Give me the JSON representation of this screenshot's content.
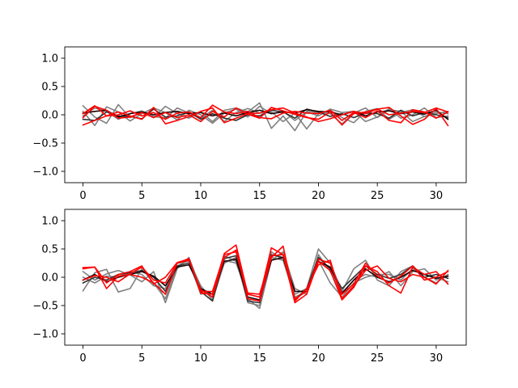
{
  "chart_data": [
    {
      "type": "line",
      "xlim": [
        -1.55,
        32.55
      ],
      "ylim": [
        -1.2,
        1.2
      ],
      "x_ticks": [
        0,
        5,
        10,
        15,
        20,
        25,
        30
      ],
      "x_tick_labels": [
        "0",
        "5",
        "10",
        "15",
        "20",
        "25",
        "30"
      ],
      "y_ticks": [
        -1.0,
        -0.5,
        0.0,
        0.5,
        1.0
      ],
      "y_tick_labels": [
        "−1.0",
        "−0.5",
        "0.0",
        "0.5",
        "1.0"
      ],
      "grid": false,
      "x": [
        0,
        1,
        2,
        3,
        4,
        5,
        6,
        7,
        8,
        9,
        10,
        11,
        12,
        13,
        14,
        15,
        16,
        17,
        18,
        19,
        20,
        21,
        22,
        23,
        24,
        25,
        26,
        27,
        28,
        29,
        30,
        31
      ],
      "series": [
        {
          "color": "#808080",
          "values": [
            0.16,
            -0.04,
            -0.15,
            0.18,
            -0.05,
            0.04,
            -0.05,
            0.15,
            0.02,
            -0.06,
            0.05,
            -0.12,
            0.08,
            0.12,
            0.05,
            0.21,
            -0.24,
            -0.02,
            -0.28,
            0.06,
            0.04,
            0.02,
            -0.16,
            0.03,
            0.12,
            -0.05,
            0.09,
            0.06,
            -0.12,
            -0.03,
            0.05,
            0.02
          ]
        },
        {
          "color": "#808080",
          "values": [
            -0.02,
            0.12,
            0.06,
            -0.08,
            0.02,
            0.07,
            -0.03,
            -0.06,
            0.12,
            0.03,
            -0.06,
            0.08,
            -0.12,
            0.04,
            0.11,
            0.03,
            0.05,
            -0.12,
            0.03,
            -0.25,
            0.02,
            0.08,
            -0.05,
            -0.14,
            0.06,
            0.11,
            -0.08,
            0.04,
            0.09,
            -0.03,
            0.02,
            0.06
          ]
        },
        {
          "color": "#808080",
          "values": [
            0.06,
            -0.19,
            0.14,
            0.05,
            -0.11,
            0.02,
            0.12,
            0.04,
            -0.09,
            0.08,
            0.0,
            -0.15,
            0.03,
            0.1,
            -0.04,
            0.15,
            0.02,
            0.06,
            -0.1,
            0.05,
            -0.02,
            0.1,
            0.04,
            0.06,
            -0.12,
            -0.04,
            0.11,
            -0.06,
            0.0,
            0.12,
            -0.05,
            -0.02
          ]
        },
        {
          "color": "#333333",
          "values": [
            -0.08,
            -0.1,
            0.05,
            -0.02,
            -0.03,
            -0.07,
            0.1,
            -0.04,
            -0.02,
            0.05,
            -0.08,
            0.02,
            -0.06,
            -0.1,
            0.0,
            -0.02,
            0.08,
            0.05,
            -0.06,
            0.1,
            0.05,
            -0.03,
            0.02,
            -0.05,
            0.03,
            0.02,
            -0.06,
            0.08,
            -0.02,
            0.04,
            0.0,
            -0.05
          ]
        },
        {
          "color": "#1a0000",
          "values": [
            0.03,
            0.06,
            0.08,
            -0.04,
            0.02,
            0.05,
            0.0,
            0.04,
            0.06,
            0.02,
            0.04,
            -0.02,
            0.03,
            -0.02,
            0.04,
            0.08,
            0.02,
            0.05,
            0.03,
            0.09,
            0.06,
            0.05,
            0.0,
            0.06,
            -0.02,
            0.05,
            0.07,
            0.02,
            0.05,
            0.01,
            0.08,
            -0.08
          ]
        },
        {
          "color": "#ff0000",
          "values": [
            -0.18,
            -0.1,
            -0.02,
            0.05,
            -0.02,
            -0.08,
            0.13,
            -0.16,
            -0.1,
            -0.03,
            0.06,
            0.12,
            -0.14,
            -0.06,
            0.02,
            0.03,
            0.09,
            0.12,
            0.03,
            -0.04,
            -0.12,
            -0.07,
            0.0,
            0.06,
            0.02,
            0.1,
            0.13,
            -0.02,
            -0.17,
            -0.08,
            0.11,
            -0.19
          ]
        },
        {
          "color": "#ff0000",
          "values": [
            -0.05,
            0.15,
            0.08,
            -0.06,
            -0.04,
            0.04,
            -0.05,
            0.04,
            -0.05,
            0.0,
            -0.12,
            0.06,
            -0.04,
            0.12,
            0.01,
            -0.06,
            0.13,
            0.07,
            0.01,
            -0.05,
            -0.08,
            0.05,
            -0.18,
            0.02,
            0.05,
            0.1,
            0.0,
            0.03,
            0.06,
            0.04,
            0.12,
            0.05
          ]
        },
        {
          "color": "#ff0000",
          "values": [
            0.02,
            0.16,
            -0.02,
            0.0,
            0.07,
            -0.02,
            0.04,
            -0.08,
            0.03,
            0.05,
            -0.05,
            0.17,
            0.05,
            0.02,
            0.06,
            -0.05,
            -0.07,
            0.03,
            0.06,
            0.03,
            0.02,
            0.08,
            -0.1,
            0.04,
            -0.05,
            0.07,
            -0.1,
            -0.14,
            0.09,
            0.05,
            -0.06,
            0.05
          ]
        }
      ]
    },
    {
      "type": "line",
      "xlim": [
        -1.55,
        32.55
      ],
      "ylim": [
        -1.2,
        1.2
      ],
      "x_ticks": [
        0,
        5,
        10,
        15,
        20,
        25,
        30
      ],
      "x_tick_labels": [
        "0",
        "5",
        "10",
        "15",
        "20",
        "25",
        "30"
      ],
      "y_ticks": [
        -1.0,
        -0.5,
        0.0,
        0.5,
        1.0
      ],
      "y_tick_labels": [
        "−1.0",
        "−0.5",
        "0.0",
        "0.5",
        "1.0"
      ],
      "grid": false,
      "x": [
        0,
        1,
        2,
        3,
        4,
        5,
        6,
        7,
        8,
        9,
        10,
        11,
        12,
        13,
        14,
        15,
        16,
        17,
        18,
        19,
        20,
        21,
        22,
        23,
        24,
        25,
        26,
        27,
        28,
        29,
        30,
        31
      ],
      "series": [
        {
          "color": "#808080",
          "values": [
            -0.24,
            0.08,
            0.14,
            -0.26,
            -0.2,
            0.15,
            -0.1,
            -0.38,
            0.2,
            0.3,
            -0.15,
            -0.4,
            0.25,
            0.35,
            -0.45,
            -0.5,
            0.45,
            0.3,
            -0.3,
            -0.2,
            0.5,
            0.25,
            -0.25,
            0.15,
            0.3,
            -0.05,
            -0.15,
            0.1,
            0.2,
            0.0,
            -0.1,
            0.05
          ]
        },
        {
          "color": "#808080",
          "values": [
            0.1,
            -0.05,
            0.06,
            0.12,
            0.04,
            -0.08,
            0.1,
            -0.45,
            0.15,
            0.35,
            -0.2,
            -0.35,
            0.38,
            0.28,
            -0.38,
            -0.55,
            0.3,
            0.45,
            -0.2,
            -0.3,
            0.4,
            0.1,
            -0.3,
            -0.05,
            0.05,
            0.0,
            0.1,
            -0.15,
            0.1,
            0.15,
            -0.05,
            0.02
          ]
        },
        {
          "color": "#808080",
          "values": [
            0.0,
            -0.1,
            0.02,
            0.0,
            0.1,
            0.05,
            -0.15,
            -0.2,
            0.25,
            0.28,
            -0.3,
            -0.25,
            0.3,
            0.25,
            -0.3,
            -0.35,
            0.35,
            0.3,
            -0.35,
            -0.25,
            0.3,
            -0.1,
            -0.35,
            -0.1,
            0.0,
            0.05,
            0.05,
            -0.05,
            0.15,
            0.05,
            0.0,
            -0.08
          ]
        },
        {
          "color": "#333333",
          "values": [
            -0.1,
            0.0,
            -0.05,
            0.05,
            0.08,
            0.12,
            0.0,
            -0.25,
            0.2,
            0.25,
            -0.25,
            -0.42,
            0.33,
            0.38,
            -0.42,
            -0.45,
            0.4,
            0.35,
            -0.4,
            -0.2,
            0.35,
            0.15,
            -0.2,
            0.0,
            0.2,
            0.05,
            -0.02,
            0.05,
            0.2,
            0.0,
            0.05,
            -0.02
          ]
        },
        {
          "color": "#1a0000",
          "values": [
            -0.05,
            0.05,
            -0.08,
            0.0,
            0.05,
            0.1,
            0.02,
            -0.15,
            0.18,
            0.22,
            -0.2,
            -0.3,
            0.28,
            0.32,
            -0.35,
            -0.4,
            0.3,
            0.35,
            -0.25,
            -0.25,
            0.28,
            0.18,
            -0.28,
            -0.05,
            0.15,
            0.0,
            -0.08,
            0.0,
            0.12,
            0.05,
            -0.02,
            0.02
          ]
        },
        {
          "color": "#ff0000",
          "values": [
            0.17,
            0.18,
            -0.2,
            0.02,
            0.05,
            0.0,
            -0.1,
            -0.3,
            0.25,
            0.33,
            -0.28,
            -0.3,
            0.42,
            0.57,
            -0.3,
            -0.35,
            0.52,
            0.4,
            -0.45,
            -0.3,
            0.28,
            0.12,
            -0.4,
            -0.18,
            0.2,
            0.1,
            -0.15,
            -0.28,
            0.18,
            0.05,
            0.1,
            -0.12
          ]
        },
        {
          "color": "#ff0000",
          "values": [
            -0.05,
            0.03,
            0.0,
            -0.08,
            0.06,
            0.18,
            -0.05,
            -0.1,
            0.25,
            0.3,
            -0.22,
            -0.35,
            0.35,
            0.48,
            -0.38,
            -0.42,
            0.35,
            0.55,
            -0.42,
            -0.2,
            0.22,
            0.3,
            -0.38,
            -0.15,
            0.12,
            0.2,
            -0.02,
            -0.08,
            0.05,
            0.0,
            -0.12,
            0.12
          ]
        },
        {
          "color": "#ff0000",
          "values": [
            0.15,
            0.18,
            -0.1,
            0.05,
            0.1,
            0.2,
            -0.12,
            0.0,
            0.26,
            0.32,
            -0.25,
            -0.25,
            0.4,
            0.45,
            -0.28,
            -0.3,
            0.38,
            0.4,
            -0.38,
            -0.25,
            0.32,
            0.25,
            -0.3,
            -0.12,
            0.25,
            0.02,
            -0.1,
            0.02,
            0.2,
            -0.05,
            0.0,
            0.1
          ]
        }
      ]
    }
  ]
}
